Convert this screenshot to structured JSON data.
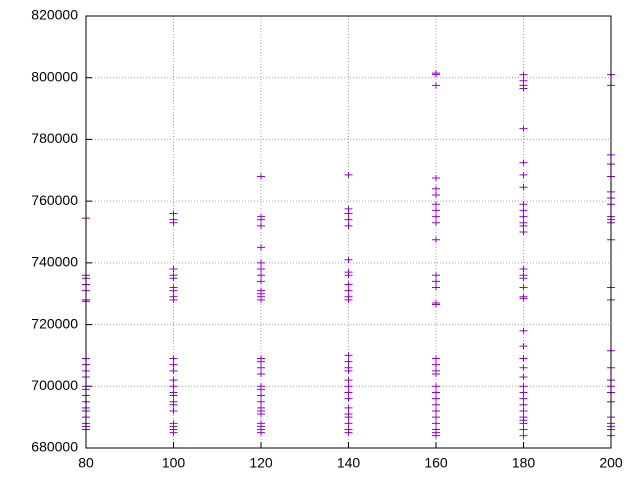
{
  "chart_data": {
    "type": "scatter",
    "grid": true,
    "xlim": [
      80,
      200
    ],
    "xticks": [
      80,
      100,
      120,
      140,
      160,
      180,
      200
    ],
    "ylim": [
      680000,
      820000
    ],
    "yticks": [
      680000,
      700000,
      720000,
      740000,
      760000,
      780000,
      800000,
      820000
    ],
    "x": [
      80,
      80,
      80,
      80,
      80,
      80,
      80,
      80,
      80,
      80,
      80,
      80,
      80,
      80,
      80,
      80,
      80,
      80,
      80,
      80,
      80,
      100,
      100,
      100,
      100,
      100,
      100,
      100,
      100,
      100,
      100,
      100,
      100,
      100,
      100,
      100,
      100,
      100,
      100,
      100,
      100,
      100,
      100,
      100,
      100,
      120,
      120,
      120,
      120,
      120,
      120,
      120,
      120,
      120,
      120,
      120,
      120,
      120,
      120,
      120,
      120,
      120,
      120,
      120,
      120,
      120,
      120,
      120,
      120,
      120,
      120,
      120,
      120,
      140,
      140,
      140,
      140,
      140,
      140,
      140,
      140,
      140,
      140,
      140,
      140,
      140,
      140,
      140,
      140,
      140,
      140,
      140,
      140,
      140,
      140,
      140,
      140,
      140,
      140,
      160,
      160,
      160,
      160,
      160,
      160,
      160,
      160,
      160,
      160,
      160,
      160,
      160,
      160,
      160,
      160,
      160,
      160,
      160,
      160,
      160,
      160,
      160,
      160,
      160,
      160,
      160,
      160,
      160,
      160,
      180,
      180,
      180,
      180,
      180,
      180,
      180,
      180,
      180,
      180,
      180,
      180,
      180,
      180,
      180,
      180,
      180,
      180,
      180,
      180,
      180,
      180,
      180,
      180,
      180,
      180,
      180,
      180,
      180,
      180,
      180,
      180,
      180,
      180,
      180,
      200,
      200,
      200,
      200,
      200,
      200,
      200,
      200,
      200,
      200,
      200,
      200,
      200,
      200,
      200,
      200,
      200,
      200,
      200,
      200,
      200,
      200,
      200,
      200,
      200
    ],
    "series": [
      {
        "color": "#9400d3",
        "values": [
          754500,
          736000,
          735000,
          733000,
          731000,
          728000,
          727500,
          709000,
          707000,
          705000,
          703000,
          700000,
          699000,
          697000,
          695000,
          693000,
          692000,
          690000,
          688000,
          687000,
          686000,
          756000,
          754000,
          753000,
          738000,
          736000,
          735000,
          732000,
          731000,
          729000,
          728000,
          709000,
          707000,
          705000,
          702000,
          700000,
          698000,
          697000,
          695000,
          694000,
          692000,
          688000,
          687000,
          686000,
          685000,
          768000,
          755000,
          754000,
          752000,
          745000,
          740000,
          738000,
          736000,
          734000,
          731000,
          730000,
          729000,
          728000,
          709000,
          708000,
          706000,
          704000,
          700000,
          699000,
          697000,
          695000,
          693000,
          692000,
          691000,
          688000,
          687000,
          686000,
          685000,
          768500,
          757500,
          756000,
          754000,
          752000,
          741000,
          737000,
          736000,
          733000,
          731000,
          729000,
          728000,
          710000,
          708000,
          706000,
          705000,
          702000,
          700000,
          698000,
          696000,
          693000,
          691000,
          690000,
          688000,
          686000,
          685000,
          801500,
          801000,
          797500,
          767500,
          764000,
          762000,
          759000,
          757000,
          755000,
          753000,
          747500,
          736000,
          734000,
          732000,
          727000,
          726500,
          709000,
          707000,
          705000,
          704000,
          700000,
          698000,
          696000,
          694000,
          692000,
          690000,
          688000,
          686000,
          685000,
          684000,
          801000,
          799000,
          797500,
          796500,
          783500,
          772500,
          768500,
          764500,
          759000,
          757000,
          755000,
          753000,
          752000,
          750000,
          738000,
          736000,
          735000,
          732000,
          729000,
          728500,
          718000,
          713000,
          709000,
          706000,
          703000,
          700000,
          698000,
          696000,
          694000,
          692000,
          690000,
          689000,
          688000,
          686000,
          684000,
          801000,
          797500,
          775000,
          772000,
          768000,
          763000,
          761000,
          759000,
          755000,
          754000,
          753000,
          747500,
          732000,
          728000,
          711500,
          706000,
          702000,
          700000,
          698000,
          695000,
          690000,
          688000,
          687000,
          686000,
          684000
        ]
      }
    ]
  }
}
